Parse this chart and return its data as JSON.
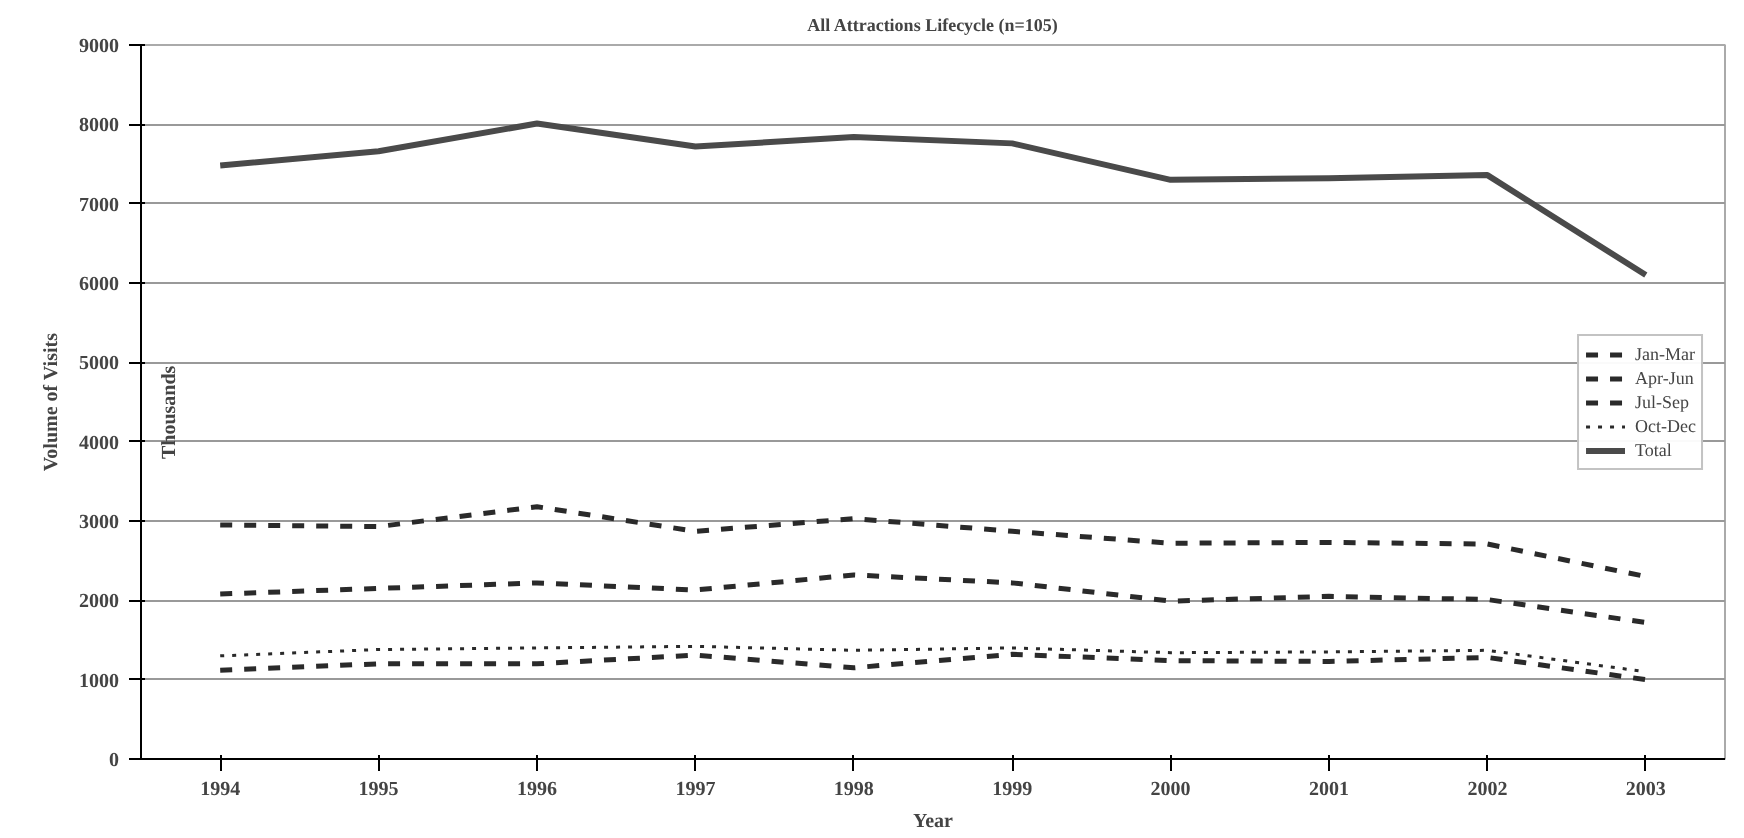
{
  "chart_data": {
    "type": "line",
    "title": "All Attractions Lifecycle (n=105)",
    "xlabel": "Year",
    "ylabel": "Volume of Visits",
    "annotations": [
      "Thousands"
    ],
    "categories": [
      "1994",
      "1995",
      "1996",
      "1997",
      "1998",
      "1999",
      "2000",
      "2001",
      "2002",
      "2003"
    ],
    "ylim": [
      0,
      9000
    ],
    "yticks": [
      0,
      1000,
      2000,
      3000,
      4000,
      5000,
      6000,
      7000,
      8000,
      9000
    ],
    "grid": "y",
    "legend": "right",
    "series": [
      {
        "name": "Jan-Mar",
        "color": "#2a2a2a",
        "line_style": "dashed",
        "values": [
          1120,
          1200,
          1200,
          1310,
          1150,
          1320,
          1240,
          1230,
          1280,
          1000
        ]
      },
      {
        "name": "Apr-Jun",
        "color": "#2a2a2a",
        "line_style": "dashed",
        "values": [
          2080,
          2150,
          2220,
          2130,
          2320,
          2220,
          1990,
          2050,
          2010,
          1720
        ]
      },
      {
        "name": "Jul-Sep",
        "color": "#2a2a2a",
        "line_style": "dashed",
        "values": [
          2950,
          2930,
          3180,
          2870,
          3030,
          2870,
          2720,
          2730,
          2710,
          2300
        ]
      },
      {
        "name": "Oct-Dec",
        "color": "#2a2a2a",
        "line_style": "dotted",
        "values": [
          1300,
          1380,
          1400,
          1420,
          1370,
          1400,
          1340,
          1350,
          1370,
          1100
        ]
      },
      {
        "name": "Total",
        "color": "#4a4a4a",
        "line_style": "solid",
        "values": [
          7480,
          7660,
          8010,
          7720,
          7840,
          7760,
          7300,
          7320,
          7360,
          6100
        ]
      }
    ]
  }
}
